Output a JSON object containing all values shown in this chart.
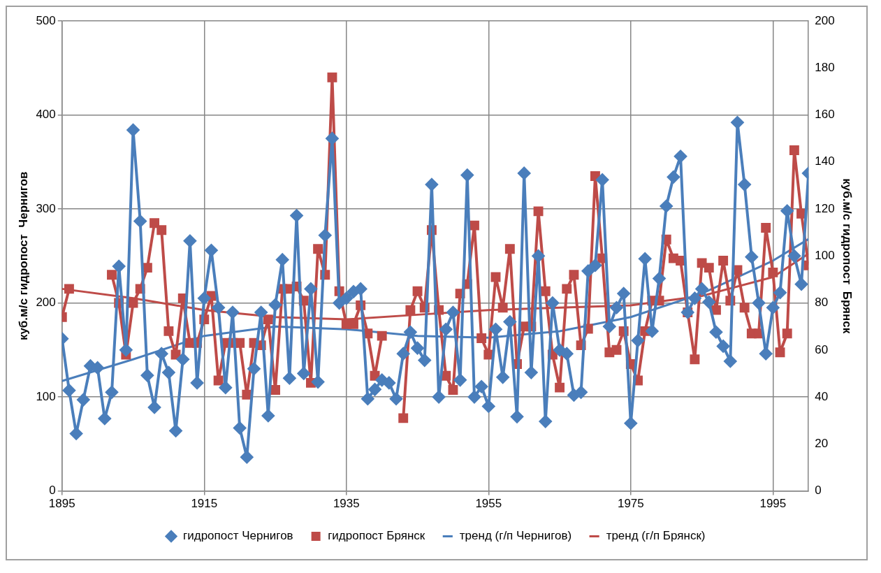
{
  "chart_data": {
    "type": "line",
    "ylabel": "куб.м/с гидропост  Чернигов",
    "y2label": "куб.м/с гидропост  Брянск",
    "x": [
      1895,
      1896,
      1897,
      1898,
      1899,
      1900,
      1901,
      1902,
      1903,
      1904,
      1905,
      1906,
      1907,
      1908,
      1909,
      1910,
      1911,
      1912,
      1913,
      1914,
      1915,
      1916,
      1917,
      1918,
      1919,
      1920,
      1921,
      1922,
      1923,
      1924,
      1925,
      1926,
      1927,
      1928,
      1929,
      1930,
      1931,
      1932,
      1933,
      1934,
      1935,
      1936,
      1937,
      1938,
      1939,
      1940,
      1941,
      1942,
      1943,
      1944,
      1945,
      1946,
      1947,
      1948,
      1949,
      1950,
      1951,
      1952,
      1953,
      1954,
      1955,
      1956,
      1957,
      1958,
      1959,
      1960,
      1961,
      1962,
      1963,
      1964,
      1965,
      1966,
      1967,
      1968,
      1969,
      1970,
      1971,
      1972,
      1973,
      1974,
      1975,
      1976,
      1977,
      1978,
      1979,
      1980,
      1981,
      1982,
      1983,
      1984,
      1985,
      1986,
      1987,
      1988,
      1989,
      1990,
      1991,
      1992,
      1993,
      1994,
      1995,
      1996,
      1997,
      1998,
      1999,
      2000
    ],
    "series": [
      {
        "name": "гидропост Чернигов",
        "color": "#4a7ebb",
        "marker": "diamond",
        "values": [
          162,
          107,
          61,
          97,
          133,
          131,
          77,
          105,
          239,
          150,
          384,
          287,
          123,
          89,
          146,
          126,
          64,
          140,
          266,
          115,
          205,
          256,
          195,
          110,
          190,
          67,
          36,
          130,
          190,
          80,
          198,
          246,
          120,
          293,
          125,
          215,
          116,
          272,
          375,
          200,
          205,
          212,
          215,
          98,
          108,
          118,
          115,
          98,
          146,
          169,
          152,
          139,
          326,
          100,
          172,
          190,
          118,
          336,
          100,
          111,
          90,
          172,
          121,
          180,
          79,
          338,
          126,
          250,
          74,
          200,
          150,
          146,
          102,
          105,
          234,
          240,
          331,
          175,
          195,
          210,
          72,
          160,
          247,
          170,
          226,
          303,
          334,
          356,
          190,
          205,
          215,
          201,
          169,
          154,
          138,
          392,
          326,
          249,
          200,
          146,
          195,
          211,
          298,
          250,
          220,
          338
        ]
      },
      {
        "name": "гидропост Брянск",
        "color": "#be4b48",
        "marker": "square",
        "axis": "y2",
        "values": [
          74,
          86,
          null,
          null,
          null,
          null,
          null,
          92,
          80,
          58,
          80,
          86,
          95,
          114,
          111,
          68,
          58,
          82,
          63,
          63,
          73,
          83,
          47,
          63,
          63,
          63,
          41,
          63,
          62,
          73,
          43,
          86,
          86,
          87,
          81,
          46,
          103,
          92,
          176,
          85,
          71,
          71,
          79,
          67,
          49,
          66,
          null,
          null,
          31,
          77,
          85,
          78,
          111,
          77,
          49,
          43,
          84,
          88,
          113,
          65,
          58,
          91,
          78,
          103,
          54,
          70,
          70,
          119,
          85,
          58,
          44,
          86,
          92,
          62,
          69,
          134,
          99,
          59,
          60,
          68,
          54,
          47,
          68,
          81,
          81,
          107,
          99,
          98,
          76,
          56,
          97,
          95,
          77,
          98,
          81,
          94,
          78,
          67,
          67,
          112,
          93,
          59,
          67,
          145,
          118,
          96
        ]
      },
      {
        "name": "тренд (г/п Чернигов)",
        "color": "#4a7ebb",
        "marker": "none",
        "x": [
          1895,
          1905,
          1915,
          1925,
          1935,
          1945,
          1955,
          1965,
          1975,
          1985,
          1995,
          2000
        ],
        "values": [
          117,
          140,
          165,
          175,
          172,
          165,
          163,
          170,
          185,
          210,
          245,
          268
        ]
      },
      {
        "name": "тренд (г/п Брянск)",
        "color": "#be4b48",
        "marker": "none",
        "axis": "y2",
        "x": [
          1895,
          1905,
          1915,
          1925,
          1935,
          1945,
          1955,
          1965,
          1975,
          1985,
          1995,
          2000
        ],
        "values": [
          86,
          82,
          77,
          74,
          73,
          75,
          77,
          78,
          79,
          83,
          91,
          101
        ]
      }
    ],
    "xlim": [
      1895,
      2000
    ],
    "xticks": [
      1895,
      1915,
      1935,
      1955,
      1975,
      1995
    ],
    "ylim": [
      0,
      500
    ],
    "yticks": [
      0,
      100,
      200,
      300,
      400,
      500
    ],
    "y2lim": [
      0,
      200
    ],
    "y2ticks": [
      0,
      20,
      40,
      60,
      80,
      100,
      120,
      140,
      160,
      180,
      200
    ],
    "grid": true,
    "legend": "bottom"
  }
}
